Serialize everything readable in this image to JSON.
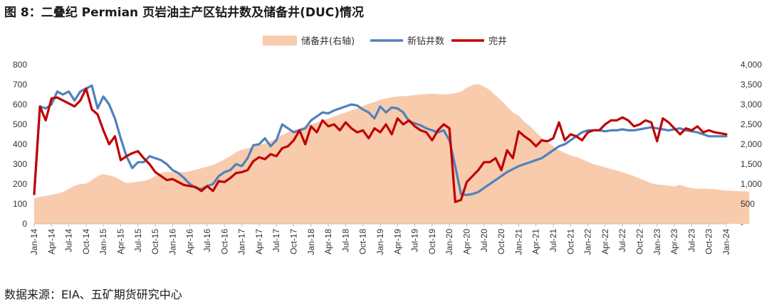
{
  "figure_title": "图 8：二叠纪 Permian 页岩油主产区钻井数及储备井(DUC)情况",
  "source": "数据来源：EIA、五矿期货研究中心",
  "colors": {
    "duc": "#F8CBAD",
    "drilled": "#4F81BD",
    "completed": "#C00000",
    "axis": "#BFBFBF"
  },
  "chart_data": {
    "type": "line",
    "title": "",
    "x_tick_labels": [
      "Jan-14",
      "Apr-14",
      "Jul-14",
      "Oct-14",
      "Jan-15",
      "Apr-15",
      "Jul-15",
      "Oct-15",
      "Jan-16",
      "Apr-16",
      "Jul-16",
      "Oct-16",
      "Jan-17",
      "Apr-17",
      "Jul-17",
      "Oct-17",
      "Jan-18",
      "Apr-18",
      "Jul-18",
      "Oct-18",
      "Jan-19",
      "Apr-19",
      "Jul-19",
      "Oct-19",
      "Jan-20",
      "Apr-20",
      "Jul-20",
      "Oct-20",
      "Jan-21",
      "Apr-21",
      "Jul-21",
      "Oct-21",
      "Jan-22",
      "Apr-22",
      "Jul-22",
      "Oct-22",
      "Jan-23",
      "Apr-23",
      "Jul-23",
      "Oct-23",
      "Jan-24"
    ],
    "y_left": {
      "min": 0,
      "max": 800,
      "ticks": [
        "0",
        "100",
        "200",
        "300",
        "400",
        "500",
        "600",
        "700",
        "800"
      ]
    },
    "y_right": {
      "min": 0,
      "max": 4000,
      "ticks": [
        "-",
        "500",
        "1,000",
        "1,500",
        "2,000",
        "2,500",
        "3,000",
        "3,500",
        "4,000"
      ]
    },
    "legend": {
      "position": "top",
      "items": [
        "储备井(右轴)",
        "新钻井数",
        "完井"
      ]
    },
    "series": [
      {
        "name": "储备井(右轴)",
        "type": "area",
        "axis": "right",
        "values": [
          640,
          680,
          700,
          730,
          760,
          800,
          880,
          960,
          1000,
          1010,
          1100,
          1200,
          1250,
          1220,
          1180,
          1100,
          1020,
          1040,
          1060,
          1080,
          1120,
          1200,
          1280,
          1310,
          1300,
          1290,
          1300,
          1320,
          1360,
          1400,
          1440,
          1480,
          1550,
          1620,
          1700,
          1800,
          1860,
          1900,
          1940,
          1980,
          2020,
          2080,
          2150,
          2230,
          2300,
          2350,
          2400,
          2450,
          2500,
          2550,
          2600,
          2650,
          2700,
          2750,
          2800,
          2850,
          2900,
          2960,
          3020,
          3060,
          3120,
          3150,
          3180,
          3200,
          3210,
          3220,
          3240,
          3250,
          3260,
          3270,
          3260,
          3250,
          3260,
          3280,
          3320,
          3420,
          3490,
          3510,
          3450,
          3360,
          3230,
          3100,
          2950,
          2800,
          2720,
          2560,
          2450,
          2300,
          2160,
          2050,
          1950,
          1850,
          1780,
          1720,
          1680,
          1620,
          1560,
          1500,
          1460,
          1420,
          1380,
          1340,
          1300,
          1250,
          1200,
          1140,
          1080,
          1020,
          990,
          980,
          960,
          940,
          980,
          930,
          900,
          880,
          890,
          880,
          870,
          850,
          840,
          830,
          820,
          820,
          810
        ]
      },
      {
        "name": "新钻井数",
        "type": "line",
        "axis": "left",
        "values": [
          150,
          590,
          580,
          600,
          665,
          650,
          665,
          620,
          665,
          680,
          695,
          580,
          640,
          600,
          530,
          430,
          340,
          280,
          310,
          310,
          340,
          330,
          320,
          300,
          270,
          255,
          230,
          200,
          180,
          175,
          190,
          200,
          240,
          260,
          270,
          300,
          290,
          330,
          395,
          400,
          430,
          390,
          420,
          500,
          480,
          460,
          470,
          480,
          520,
          540,
          560,
          555,
          570,
          580,
          590,
          600,
          595,
          575,
          560,
          530,
          590,
          560,
          585,
          580,
          560,
          515,
          505,
          495,
          480,
          470,
          460,
          470,
          420,
          290,
          150,
          145,
          150,
          160,
          180,
          200,
          220,
          240,
          260,
          275,
          290,
          300,
          310,
          320,
          330,
          350,
          370,
          390,
          400,
          420,
          440,
          460,
          470,
          470,
          470,
          465,
          470,
          470,
          475,
          470,
          470,
          475,
          480,
          485,
          480,
          475,
          470,
          475,
          480,
          470,
          465,
          460,
          450,
          440,
          440,
          440,
          440
        ]
      },
      {
        "name": "完井",
        "type": "line",
        "axis": "left",
        "values": [
          150,
          590,
          520,
          630,
          635,
          620,
          605,
          590,
          620,
          680,
          575,
          550,
          470,
          400,
          440,
          320,
          340,
          355,
          365,
          330,
          300,
          260,
          240,
          220,
          225,
          210,
          195,
          190,
          185,
          165,
          190,
          165,
          215,
          210,
          230,
          255,
          260,
          270,
          315,
          335,
          325,
          350,
          340,
          380,
          390,
          420,
          470,
          400,
          490,
          460,
          520,
          490,
          500,
          470,
          510,
          480,
          460,
          470,
          430,
          480,
          460,
          500,
          450,
          530,
          500,
          520,
          490,
          470,
          460,
          420,
          470,
          500,
          480,
          110,
          120,
          210,
          240,
          270,
          310,
          310,
          330,
          270,
          370,
          330,
          465,
          440,
          420,
          390,
          420,
          415,
          430,
          510,
          420,
          450,
          440,
          420,
          460,
          470,
          470,
          500,
          520,
          520,
          535,
          520,
          490,
          500,
          520,
          510,
          415,
          530,
          510,
          480,
          450,
          480,
          470,
          490,
          460,
          470,
          460,
          455,
          450
        ]
      }
    ]
  }
}
